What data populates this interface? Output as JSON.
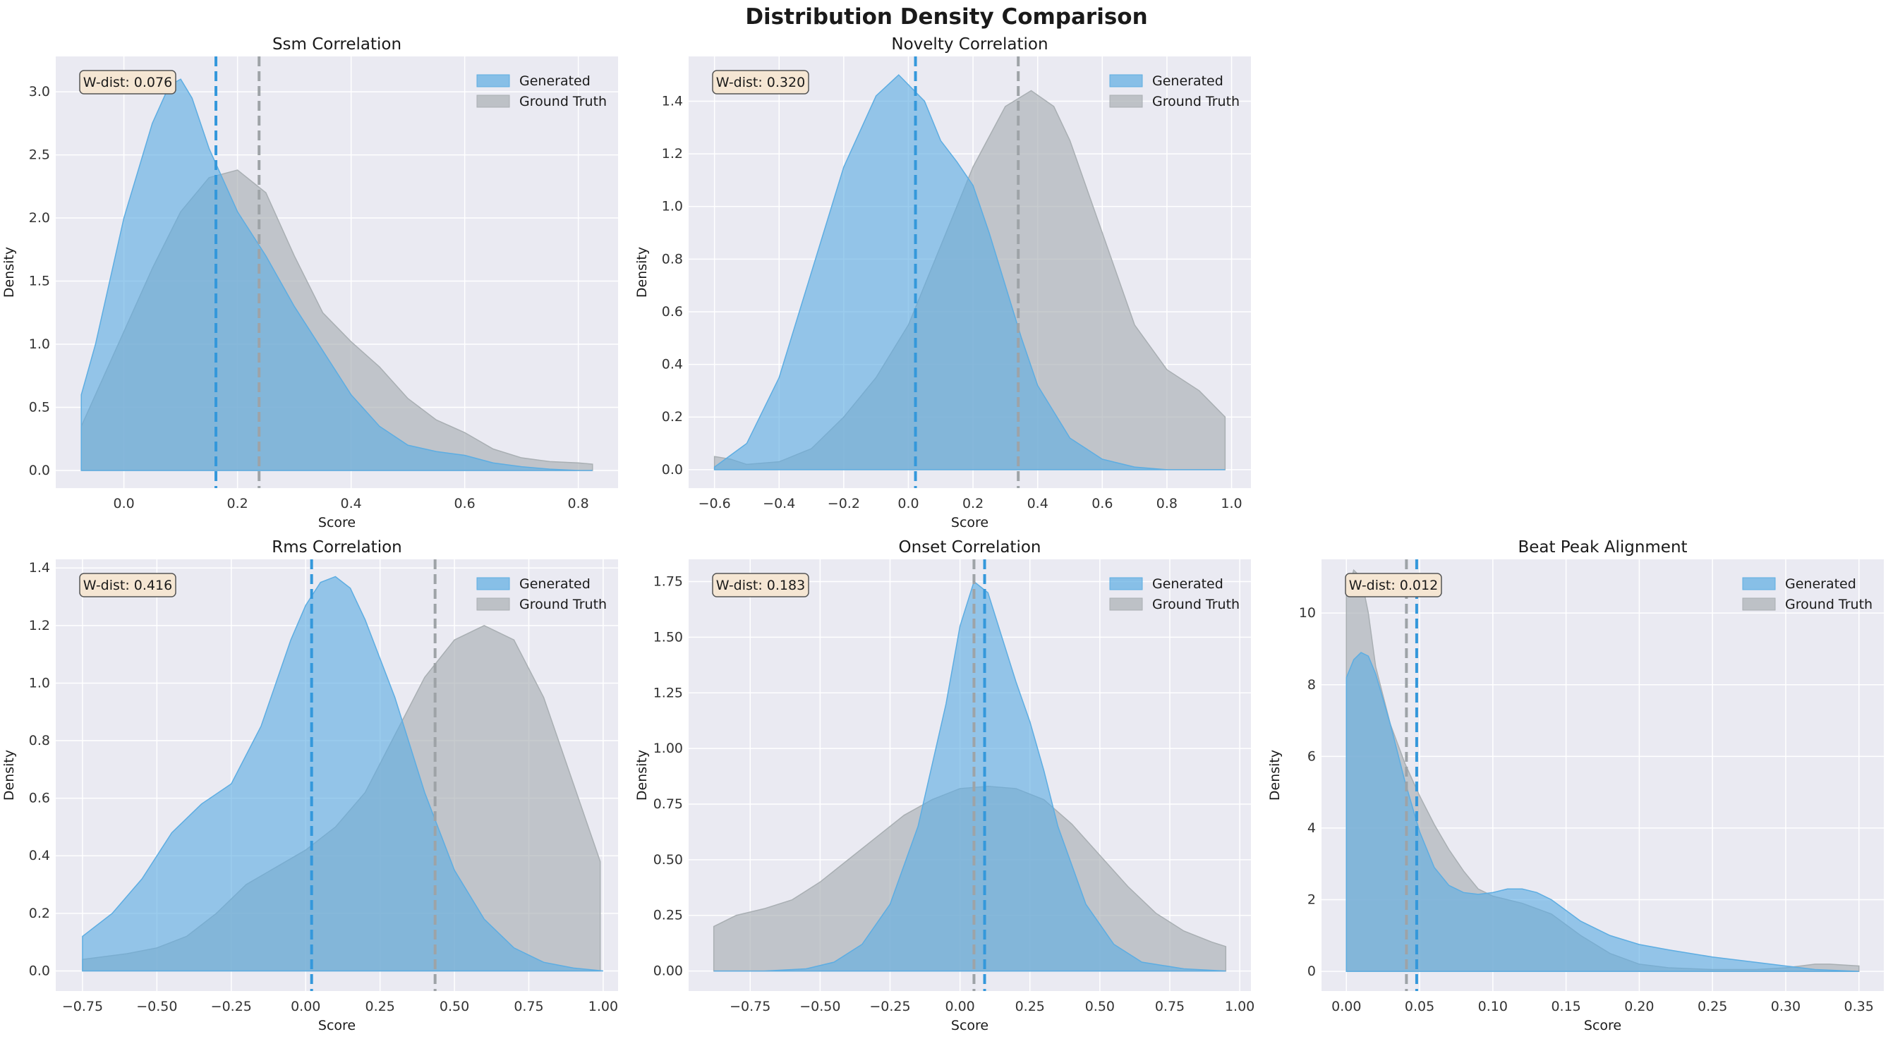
{
  "figure": {
    "suptitle": "Distribution Density Comparison"
  },
  "colors": {
    "generated": "#5DADE2",
    "ground_truth": "#A9AFB3",
    "panel_bg": "#EAEAF2",
    "grid": "#ffffff",
    "wdist_box": "#F5E6D3"
  },
  "chart_data": [
    {
      "type": "area",
      "title": "Ssm Correlation",
      "xlabel": "Score",
      "ylabel": "Density",
      "xlim": [
        -0.12,
        0.87
      ],
      "ylim": [
        -0.14,
        3.28
      ],
      "xticks": [
        0.0,
        0.2,
        0.4,
        0.6,
        0.8
      ],
      "xtick_labels": [
        "0.0",
        "0.2",
        "0.4",
        "0.6",
        "0.8"
      ],
      "yticks": [
        0.0,
        0.5,
        1.0,
        1.5,
        2.0,
        2.5,
        3.0
      ],
      "ytick_labels": [
        "0.0",
        "0.5",
        "1.0",
        "1.5",
        "2.0",
        "2.5",
        "3.0"
      ],
      "wdist": "W-dist: 0.076",
      "legend": [
        "Generated",
        "Ground Truth"
      ],
      "series": [
        {
          "name": "Generated",
          "mean": 0.162,
          "x": [
            -0.075,
            -0.05,
            0.0,
            0.05,
            0.08,
            0.1,
            0.12,
            0.15,
            0.2,
            0.25,
            0.3,
            0.35,
            0.4,
            0.45,
            0.5,
            0.55,
            0.6,
            0.65,
            0.7,
            0.75,
            0.8,
            0.825
          ],
          "y": [
            0.6,
            1.0,
            2.0,
            2.75,
            3.05,
            3.1,
            2.95,
            2.55,
            2.05,
            1.7,
            1.3,
            0.95,
            0.6,
            0.35,
            0.2,
            0.15,
            0.12,
            0.06,
            0.03,
            0.01,
            0.0,
            0.0
          ]
        },
        {
          "name": "Ground Truth",
          "mean": 0.238,
          "x": [
            -0.075,
            -0.05,
            0.0,
            0.05,
            0.1,
            0.15,
            0.2,
            0.25,
            0.3,
            0.35,
            0.4,
            0.45,
            0.5,
            0.55,
            0.6,
            0.65,
            0.7,
            0.75,
            0.8,
            0.825
          ],
          "y": [
            0.35,
            0.6,
            1.1,
            1.6,
            2.05,
            2.32,
            2.38,
            2.2,
            1.7,
            1.25,
            1.02,
            0.82,
            0.57,
            0.4,
            0.3,
            0.17,
            0.1,
            0.07,
            0.06,
            0.05
          ]
        }
      ]
    },
    {
      "type": "area",
      "title": "Novelty Correlation",
      "xlabel": "Score",
      "ylabel": "Density",
      "xlim": [
        -0.68,
        1.06
      ],
      "ylim": [
        -0.07,
        1.57
      ],
      "xticks": [
        -0.6,
        -0.4,
        -0.2,
        0.0,
        0.2,
        0.4,
        0.6,
        0.8,
        1.0
      ],
      "xtick_labels": [
        "−0.6",
        "−0.4",
        "−0.2",
        "0.0",
        "0.2",
        "0.4",
        "0.6",
        "0.8",
        "1.0"
      ],
      "yticks": [
        0.0,
        0.2,
        0.4,
        0.6,
        0.8,
        1.0,
        1.2,
        1.4
      ],
      "ytick_labels": [
        "0.0",
        "0.2",
        "0.4",
        "0.6",
        "0.8",
        "1.0",
        "1.2",
        "1.4"
      ],
      "wdist": "W-dist: 0.320",
      "legend": [
        "Generated",
        "Ground Truth"
      ],
      "series": [
        {
          "name": "Generated",
          "mean": 0.022,
          "x": [
            -0.6,
            -0.5,
            -0.4,
            -0.3,
            -0.2,
            -0.1,
            -0.03,
            0.05,
            0.1,
            0.15,
            0.2,
            0.25,
            0.3,
            0.35,
            0.4,
            0.5,
            0.6,
            0.7,
            0.8,
            0.9,
            0.98
          ],
          "y": [
            0.01,
            0.1,
            0.35,
            0.75,
            1.15,
            1.42,
            1.5,
            1.4,
            1.25,
            1.17,
            1.08,
            0.9,
            0.7,
            0.5,
            0.32,
            0.12,
            0.04,
            0.01,
            0.0,
            0.0,
            0.0
          ]
        },
        {
          "name": "Ground Truth",
          "mean": 0.34,
          "x": [
            -0.6,
            -0.55,
            -0.5,
            -0.4,
            -0.3,
            -0.2,
            -0.1,
            0.0,
            0.1,
            0.2,
            0.3,
            0.38,
            0.45,
            0.5,
            0.6,
            0.7,
            0.8,
            0.9,
            0.98
          ],
          "y": [
            0.05,
            0.04,
            0.02,
            0.03,
            0.08,
            0.2,
            0.35,
            0.55,
            0.85,
            1.15,
            1.38,
            1.44,
            1.38,
            1.25,
            0.9,
            0.55,
            0.38,
            0.3,
            0.2
          ]
        }
      ]
    },
    {
      "type": "area",
      "title": "Rms Correlation",
      "xlabel": "Score",
      "ylabel": "Density",
      "xlim": [
        -0.84,
        1.05
      ],
      "ylim": [
        -0.07,
        1.43
      ],
      "xticks": [
        -0.75,
        -0.5,
        -0.25,
        0.0,
        0.25,
        0.5,
        0.75,
        1.0
      ],
      "xtick_labels": [
        "−0.75",
        "−0.50",
        "−0.25",
        "0.00",
        "0.25",
        "0.50",
        "0.75",
        "1.00"
      ],
      "yticks": [
        0.0,
        0.2,
        0.4,
        0.6,
        0.8,
        1.0,
        1.2,
        1.4
      ],
      "ytick_labels": [
        "0.0",
        "0.2",
        "0.4",
        "0.6",
        "0.8",
        "1.0",
        "1.2",
        "1.4"
      ],
      "wdist": "W-dist: 0.416",
      "legend": [
        "Generated",
        "Ground Truth"
      ],
      "series": [
        {
          "name": "Generated",
          "mean": 0.02,
          "x": [
            -0.75,
            -0.65,
            -0.55,
            -0.45,
            -0.35,
            -0.25,
            -0.15,
            -0.05,
            0.0,
            0.05,
            0.1,
            0.15,
            0.2,
            0.3,
            0.4,
            0.5,
            0.6,
            0.7,
            0.8,
            0.9,
            1.0
          ],
          "y": [
            0.12,
            0.2,
            0.32,
            0.48,
            0.58,
            0.65,
            0.85,
            1.15,
            1.27,
            1.35,
            1.37,
            1.33,
            1.22,
            0.95,
            0.62,
            0.35,
            0.18,
            0.08,
            0.03,
            0.01,
            0.0
          ]
        },
        {
          "name": "Ground Truth",
          "mean": 0.435,
          "x": [
            -0.75,
            -0.6,
            -0.5,
            -0.4,
            -0.3,
            -0.2,
            -0.1,
            0.0,
            0.1,
            0.2,
            0.3,
            0.4,
            0.5,
            0.6,
            0.7,
            0.8,
            0.9,
            0.99
          ],
          "y": [
            0.04,
            0.06,
            0.08,
            0.12,
            0.2,
            0.3,
            0.36,
            0.42,
            0.5,
            0.62,
            0.82,
            1.02,
            1.15,
            1.2,
            1.15,
            0.95,
            0.65,
            0.38
          ]
        }
      ]
    },
    {
      "type": "area",
      "title": "Onset Correlation",
      "xlabel": "Score",
      "ylabel": "Density",
      "xlim": [
        -0.97,
        1.04
      ],
      "ylim": [
        -0.09,
        1.85
      ],
      "xticks": [
        -0.75,
        -0.5,
        -0.25,
        0.0,
        0.25,
        0.5,
        0.75,
        1.0
      ],
      "xtick_labels": [
        "−0.75",
        "−0.50",
        "−0.25",
        "0.00",
        "0.25",
        "0.50",
        "0.75",
        "1.00"
      ],
      "yticks": [
        0.0,
        0.25,
        0.5,
        0.75,
        1.0,
        1.25,
        1.5,
        1.75
      ],
      "ytick_labels": [
        "0.00",
        "0.25",
        "0.50",
        "0.75",
        "1.00",
        "1.25",
        "1.50",
        "1.75"
      ],
      "wdist": "W-dist: 0.183",
      "legend": [
        "Generated",
        "Ground Truth"
      ],
      "series": [
        {
          "name": "Generated",
          "mean": 0.088,
          "x": [
            -0.88,
            -0.7,
            -0.55,
            -0.45,
            -0.35,
            -0.25,
            -0.15,
            -0.05,
            0.0,
            0.05,
            0.1,
            0.15,
            0.2,
            0.25,
            0.3,
            0.35,
            0.45,
            0.55,
            0.65,
            0.8,
            0.95
          ],
          "y": [
            0.0,
            0.0,
            0.01,
            0.04,
            0.12,
            0.3,
            0.65,
            1.2,
            1.55,
            1.75,
            1.7,
            1.5,
            1.3,
            1.12,
            0.9,
            0.65,
            0.3,
            0.12,
            0.04,
            0.01,
            0.0
          ]
        },
        {
          "name": "Ground Truth",
          "mean": 0.05,
          "x": [
            -0.88,
            -0.8,
            -0.7,
            -0.6,
            -0.5,
            -0.4,
            -0.3,
            -0.2,
            -0.1,
            0.0,
            0.1,
            0.2,
            0.3,
            0.4,
            0.5,
            0.6,
            0.7,
            0.8,
            0.9,
            0.95
          ],
          "y": [
            0.2,
            0.25,
            0.28,
            0.32,
            0.4,
            0.5,
            0.6,
            0.7,
            0.77,
            0.82,
            0.83,
            0.82,
            0.77,
            0.66,
            0.52,
            0.38,
            0.26,
            0.18,
            0.13,
            0.11
          ]
        }
      ]
    },
    {
      "type": "area",
      "title": "Beat Peak Alignment",
      "xlabel": "Score",
      "ylabel": "Density",
      "xlim": [
        -0.017,
        0.367
      ],
      "ylim": [
        -0.55,
        11.5
      ],
      "xticks": [
        0.0,
        0.05,
        0.1,
        0.15,
        0.2,
        0.25,
        0.3,
        0.35
      ],
      "xtick_labels": [
        "0.00",
        "0.05",
        "0.10",
        "0.15",
        "0.20",
        "0.25",
        "0.30",
        "0.35"
      ],
      "yticks": [
        0,
        2,
        4,
        6,
        8,
        10
      ],
      "ytick_labels": [
        "0",
        "2",
        "4",
        "6",
        "8",
        "10"
      ],
      "wdist": "W-dist: 0.012",
      "legend": [
        "Generated",
        "Ground Truth"
      ],
      "series": [
        {
          "name": "Generated",
          "mean": 0.048,
          "x": [
            0.0,
            0.005,
            0.01,
            0.015,
            0.02,
            0.03,
            0.04,
            0.05,
            0.06,
            0.07,
            0.08,
            0.09,
            0.1,
            0.11,
            0.12,
            0.13,
            0.14,
            0.15,
            0.16,
            0.18,
            0.2,
            0.22,
            0.25,
            0.28,
            0.3,
            0.32,
            0.35
          ],
          "y": [
            8.2,
            8.7,
            8.9,
            8.8,
            8.3,
            6.9,
            5.3,
            3.9,
            2.9,
            2.4,
            2.2,
            2.15,
            2.2,
            2.3,
            2.3,
            2.2,
            2.0,
            1.7,
            1.4,
            1.0,
            0.75,
            0.6,
            0.4,
            0.25,
            0.15,
            0.05,
            0.0
          ]
        },
        {
          "name": "Ground Truth",
          "mean": 0.041,
          "x": [
            0.0,
            0.005,
            0.01,
            0.015,
            0.02,
            0.03,
            0.04,
            0.05,
            0.06,
            0.07,
            0.08,
            0.09,
            0.1,
            0.12,
            0.14,
            0.16,
            0.18,
            0.2,
            0.22,
            0.25,
            0.28,
            0.3,
            0.31,
            0.32,
            0.33,
            0.35
          ],
          "y": [
            10.5,
            11.2,
            11.0,
            10.0,
            8.5,
            6.9,
            5.8,
            4.9,
            4.1,
            3.4,
            2.8,
            2.3,
            2.1,
            1.9,
            1.6,
            1.0,
            0.5,
            0.2,
            0.1,
            0.05,
            0.05,
            0.1,
            0.15,
            0.2,
            0.2,
            0.15
          ]
        }
      ]
    }
  ]
}
